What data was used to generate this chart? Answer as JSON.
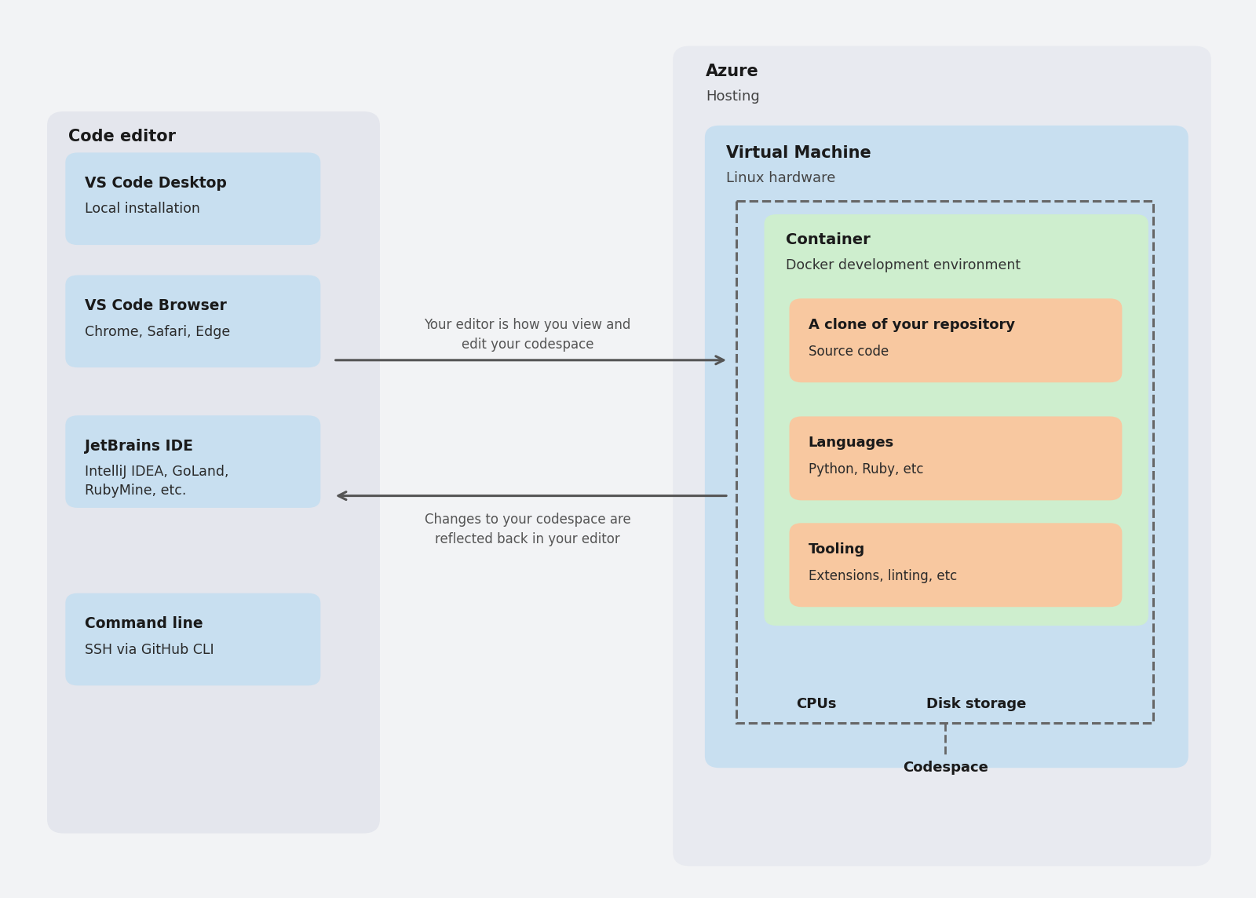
{
  "bg_color": "#f2f3f5",
  "editor_box_color": "#e4e6ed",
  "azure_box_color": "#e8eaf0",
  "vm_box_color": "#c8dff0",
  "container_box_color": "#ceeece",
  "editor_item_color": "#c8dff0",
  "container_item_color": "#f8c8a0",
  "editor_title": "Code editor",
  "azure_title": "Azure",
  "azure_subtitle": "Hosting",
  "vm_title": "Virtual Machine",
  "vm_subtitle": "Linux hardware",
  "container_title": "Container",
  "container_subtitle": "Docker development environment",
  "cpus_label": "CPUs",
  "disk_label": "Disk storage",
  "codespace_label": "Codespace",
  "arrow1_label": "Your editor is how you view and\nedit your codespace",
  "arrow2_label": "Changes to your codespace are\nreflected back in your editor",
  "editor_items": [
    {
      "title": "VS Code Desktop",
      "subtitle": "Local installation"
    },
    {
      "title": "VS Code Browser",
      "subtitle": "Chrome, Safari, Edge"
    },
    {
      "title": "JetBrains IDE",
      "subtitle": "IntelliJ IDEA, GoLand,\nRubyMine, etc."
    },
    {
      "title": "Command line",
      "subtitle": "SSH via GitHub CLI"
    }
  ],
  "container_items": [
    {
      "title": "A clone of your repository",
      "subtitle": "Source code"
    },
    {
      "title": "Languages",
      "subtitle": "Python, Ruby, etc"
    },
    {
      "title": "Tooling",
      "subtitle": "Extensions, linting, etc"
    }
  ]
}
